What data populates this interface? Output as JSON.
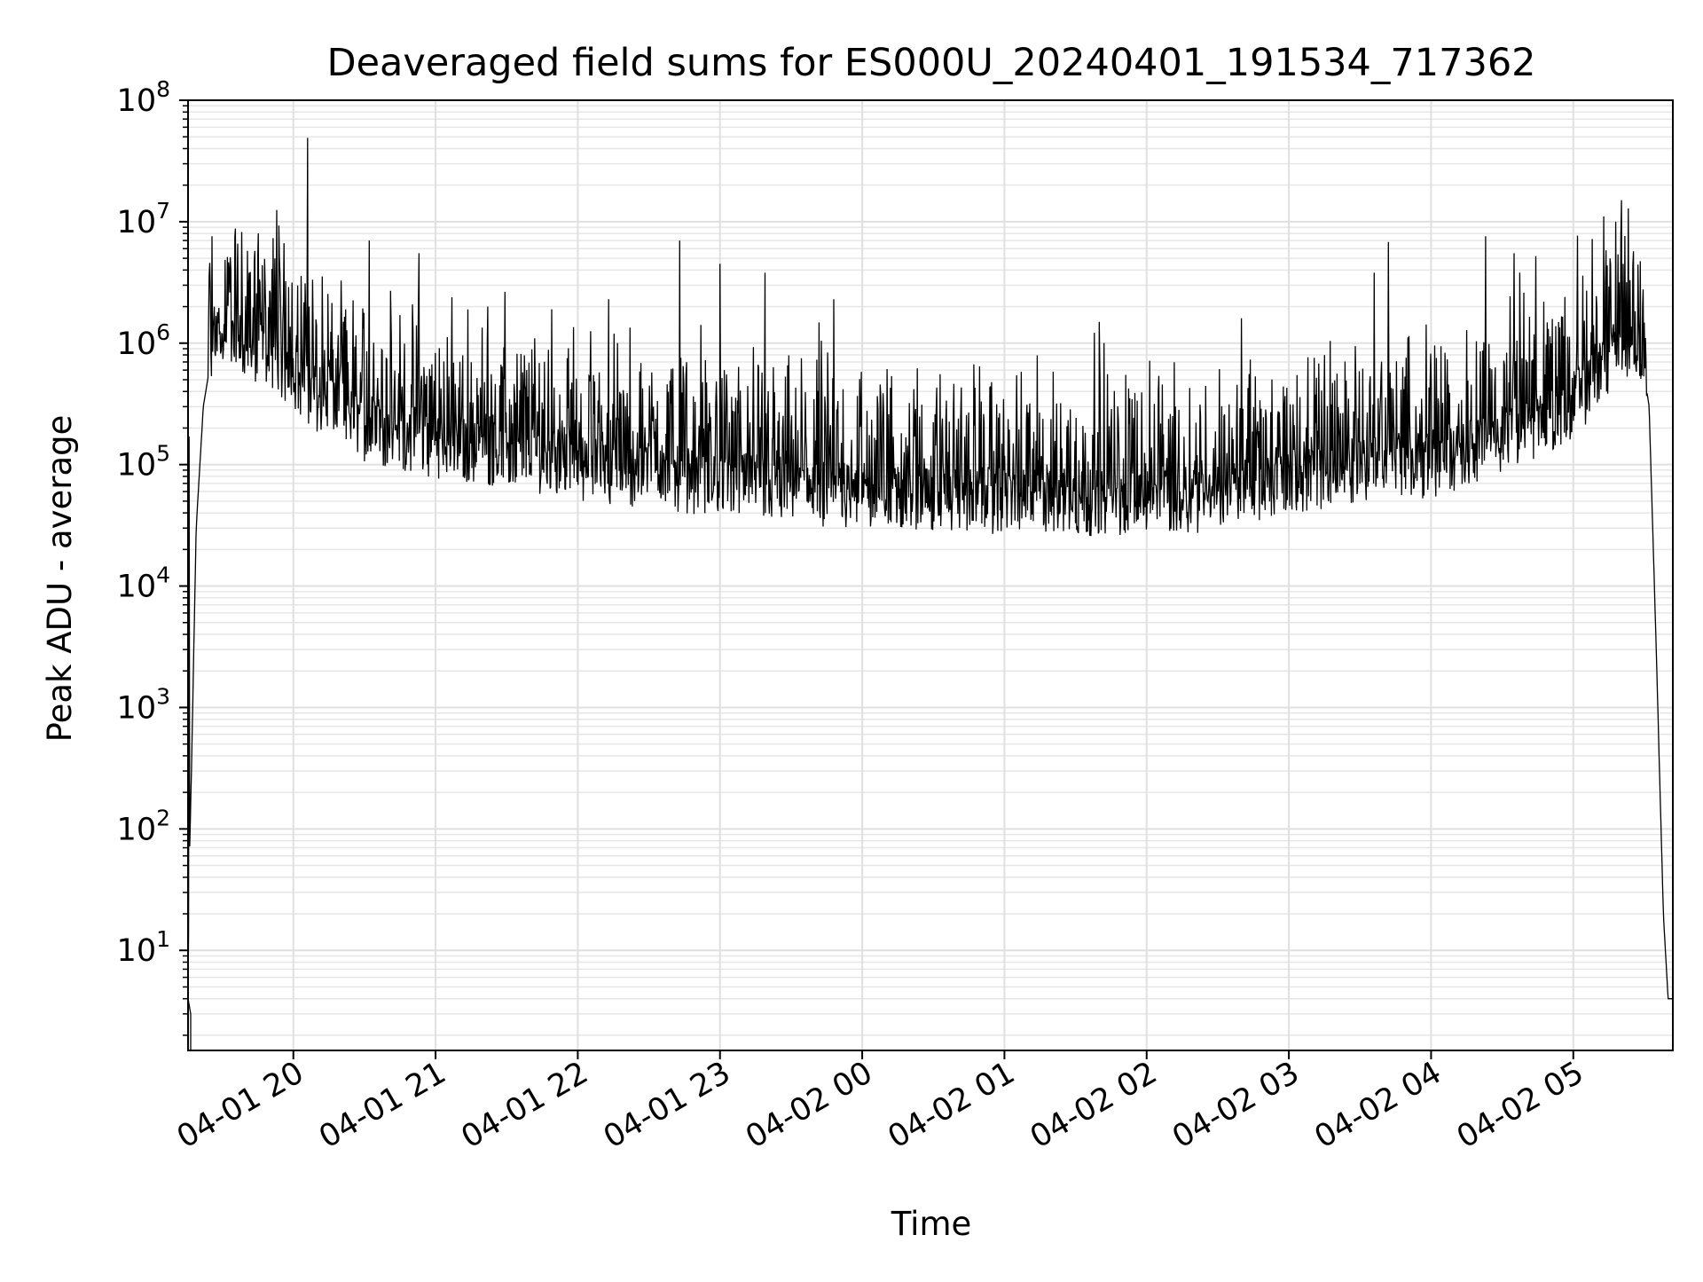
{
  "chart_data": {
    "type": "line",
    "title": "Deaveraged field sums for ES000U_20240401_191534_717362",
    "xlabel": "Time",
    "ylabel": "Peak ADU - average",
    "y_scale": "log",
    "ylim": [
      1.5,
      100000000
    ],
    "xlim": [
      "2024-04-01 19:15:34",
      "2024-04-02 05:42:00"
    ],
    "grid": true,
    "grid_minor": true,
    "line_color": "#000000",
    "x_ticks": [
      {
        "time": "2024-04-01 20:00",
        "label": "04-01 20"
      },
      {
        "time": "2024-04-01 21:00",
        "label": "04-01 21"
      },
      {
        "time": "2024-04-01 22:00",
        "label": "04-01 22"
      },
      {
        "time": "2024-04-01 23:00",
        "label": "04-01 23"
      },
      {
        "time": "2024-04-02 00:00",
        "label": "04-02 00"
      },
      {
        "time": "2024-04-02 01:00",
        "label": "04-02 01"
      },
      {
        "time": "2024-04-02 02:00",
        "label": "04-02 02"
      },
      {
        "time": "2024-04-02 03:00",
        "label": "04-02 03"
      },
      {
        "time": "2024-04-02 04:00",
        "label": "04-02 04"
      },
      {
        "time": "2024-04-02 05:00",
        "label": "04-02 05"
      }
    ],
    "y_ticks": [
      {
        "value": 10,
        "base": "10",
        "exp": "1"
      },
      {
        "value": 100,
        "base": "10",
        "exp": "2"
      },
      {
        "value": 1000,
        "base": "10",
        "exp": "3"
      },
      {
        "value": 10000,
        "base": "10",
        "exp": "4"
      },
      {
        "value": 100000,
        "base": "10",
        "exp": "5"
      },
      {
        "value": 1000000,
        "base": "10",
        "exp": "6"
      },
      {
        "value": 10000000,
        "base": "10",
        "exp": "7"
      },
      {
        "value": 100000000,
        "base": "10",
        "exp": "8"
      }
    ],
    "series": [
      {
        "baseline": [
          [
            "2024-04-01 19:15:34",
            4
          ],
          [
            "2024-04-01 19:16:00",
            40
          ],
          [
            "2024-04-01 19:17:00",
            300
          ],
          [
            "2024-04-01 19:19:00",
            30000
          ],
          [
            "2024-04-01 19:22:00",
            300000
          ],
          [
            "2024-04-01 19:26:00",
            900000
          ],
          [
            "2024-04-01 19:32:00",
            1000000
          ],
          [
            "2024-04-01 19:50:00",
            800000
          ],
          [
            "2024-04-01 20:10:00",
            350000
          ],
          [
            "2024-04-01 20:30:00",
            200000
          ],
          [
            "2024-04-01 21:00:00",
            140000
          ],
          [
            "2024-04-01 21:30:00",
            120000
          ],
          [
            "2024-04-01 22:00:00",
            95000
          ],
          [
            "2024-04-01 22:30:00",
            80000
          ],
          [
            "2024-04-01 23:00:00",
            70000
          ],
          [
            "2024-04-01 23:30:00",
            60000
          ],
          [
            "2024-04-02 00:00:00",
            55000
          ],
          [
            "2024-04-02 00:30:00",
            52000
          ],
          [
            "2024-04-02 01:00:00",
            50000
          ],
          [
            "2024-04-02 01:30:00",
            48000
          ],
          [
            "2024-04-02 02:00:00",
            50000
          ],
          [
            "2024-04-02 02:30:00",
            52000
          ],
          [
            "2024-04-02 03:00:00",
            70000
          ],
          [
            "2024-04-02 03:30:00",
            90000
          ],
          [
            "2024-04-02 04:00:00",
            100000
          ],
          [
            "2024-04-02 04:30:00",
            150000
          ],
          [
            "2024-04-02 05:00:00",
            300000
          ],
          [
            "2024-04-02 05:20:00",
            900000
          ],
          [
            "2024-04-02 05:28:00",
            1000000
          ],
          [
            "2024-04-02 05:32:00",
            300000
          ],
          [
            "2024-04-02 05:35:00",
            3000
          ],
          [
            "2024-04-02 05:38:00",
            20
          ],
          [
            "2024-04-02 05:40:00",
            4
          ],
          [
            "2024-04-02 05:42:00",
            4
          ]
        ],
        "spikes": [
          [
            "2024-04-01 19:16:00",
            170000
          ],
          [
            "2024-04-01 19:28:00",
            1800000
          ],
          [
            "2024-04-01 19:45:00",
            5500000
          ],
          [
            "2024-04-01 19:50:00",
            2700000
          ],
          [
            "2024-04-01 19:53:00",
            12500000
          ],
          [
            "2024-04-01 19:58:00",
            2900000
          ],
          [
            "2024-04-01 20:06:00",
            49000000
          ],
          [
            "2024-04-01 20:32:00",
            7000000
          ],
          [
            "2024-04-01 20:41:00",
            2700000
          ],
          [
            "2024-04-01 20:53:00",
            5500000
          ],
          [
            "2024-04-01 21:22:00",
            2000000
          ],
          [
            "2024-04-01 21:49:00",
            1900000
          ],
          [
            "2024-04-01 22:13:00",
            2300000
          ],
          [
            "2024-04-01 22:43:00",
            7000000
          ],
          [
            "2024-04-01 23:00:00",
            4500000
          ],
          [
            "2024-04-01 23:19:00",
            3800000
          ],
          [
            "2024-04-01 23:48:00",
            2300000
          ],
          [
            "2024-04-02 01:40:00",
            1500000
          ],
          [
            "2024-04-02 02:40:00",
            1600000
          ],
          [
            "2024-04-02 03:36:00",
            3800000
          ],
          [
            "2024-04-02 03:42:00",
            6800000
          ],
          [
            "2024-04-02 04:23:00",
            7600000
          ],
          [
            "2024-04-02 04:35:00",
            5500000
          ],
          [
            "2024-04-02 05:04:00",
            3600000
          ],
          [
            "2024-04-02 05:08:00",
            7200000
          ]
        ]
      }
    ]
  }
}
